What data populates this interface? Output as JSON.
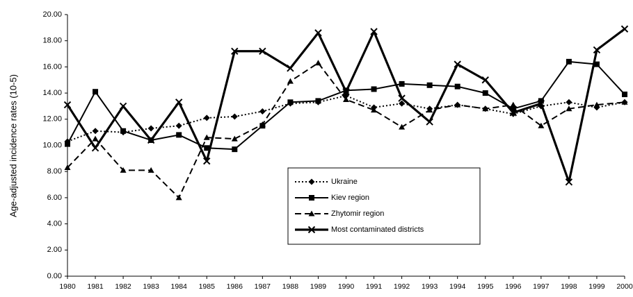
{
  "chart_data": {
    "type": "line",
    "y_label": "Age-adjusted incidence rates (10-5)",
    "categories": [
      "1980",
      "1981",
      "1982",
      "1983",
      "1984",
      "1985",
      "1986",
      "1987",
      "1988",
      "1989",
      "1990",
      "1991",
      "1992",
      "1993",
      "1994",
      "1995",
      "1996",
      "1997",
      "1998",
      "1999",
      "2000"
    ],
    "ylim": [
      0,
      20
    ],
    "yticks": [
      {
        "value": 0,
        "label": "0.00"
      },
      {
        "value": 2,
        "label": "2.00"
      },
      {
        "value": 4,
        "label": "4.00"
      },
      {
        "value": 6,
        "label": "6.00"
      },
      {
        "value": 8,
        "label": "8.00"
      },
      {
        "value": 10,
        "label": "10.00"
      },
      {
        "value": 12,
        "label": "12.00"
      },
      {
        "value": 14,
        "label": "14.00"
      },
      {
        "value": 16,
        "label": "16.00"
      },
      {
        "value": 18,
        "label": "18.00"
      },
      {
        "value": 20,
        "label": "20.00"
      }
    ],
    "grid": false,
    "legend": "center",
    "series": [
      {
        "name": "Ukraine",
        "color": "#000000",
        "line_style": "dotted",
        "marker": "diamond",
        "values": [
          10.3,
          11.1,
          11.0,
          11.3,
          11.5,
          12.1,
          12.2,
          12.6,
          13.2,
          13.3,
          13.8,
          12.9,
          13.2,
          12.8,
          13.1,
          12.8,
          12.4,
          13.0,
          13.3,
          12.9,
          13.3
        ]
      },
      {
        "name": "Kiev region",
        "color": "#000000",
        "line_style": "solid",
        "marker": "square",
        "values": [
          10.1,
          14.1,
          11.1,
          10.4,
          10.8,
          9.8,
          9.7,
          11.5,
          13.3,
          13.4,
          14.2,
          14.3,
          14.7,
          14.6,
          14.5,
          14.0,
          12.8,
          13.4,
          16.4,
          16.2,
          13.9
        ]
      },
      {
        "name": "Zhytomir region",
        "color": "#000000",
        "line_style": "dashed",
        "marker": "triangle",
        "values": [
          8.3,
          10.5,
          8.1,
          8.1,
          6.0,
          10.6,
          10.5,
          11.6,
          14.9,
          16.3,
          13.5,
          12.7,
          11.4,
          12.7,
          13.1,
          12.8,
          13.1,
          11.5,
          12.8,
          13.1,
          13.3
        ]
      },
      {
        "name": "Most contaminated districts",
        "color": "#000000",
        "line_style": "thick",
        "marker": "x",
        "values": [
          13.1,
          9.8,
          13.0,
          10.4,
          13.3,
          8.8,
          17.2,
          17.2,
          15.9,
          18.6,
          14.1,
          18.7,
          13.6,
          11.8,
          16.2,
          15.0,
          12.5,
          13.2,
          7.2,
          17.3,
          18.9
        ]
      }
    ]
  }
}
